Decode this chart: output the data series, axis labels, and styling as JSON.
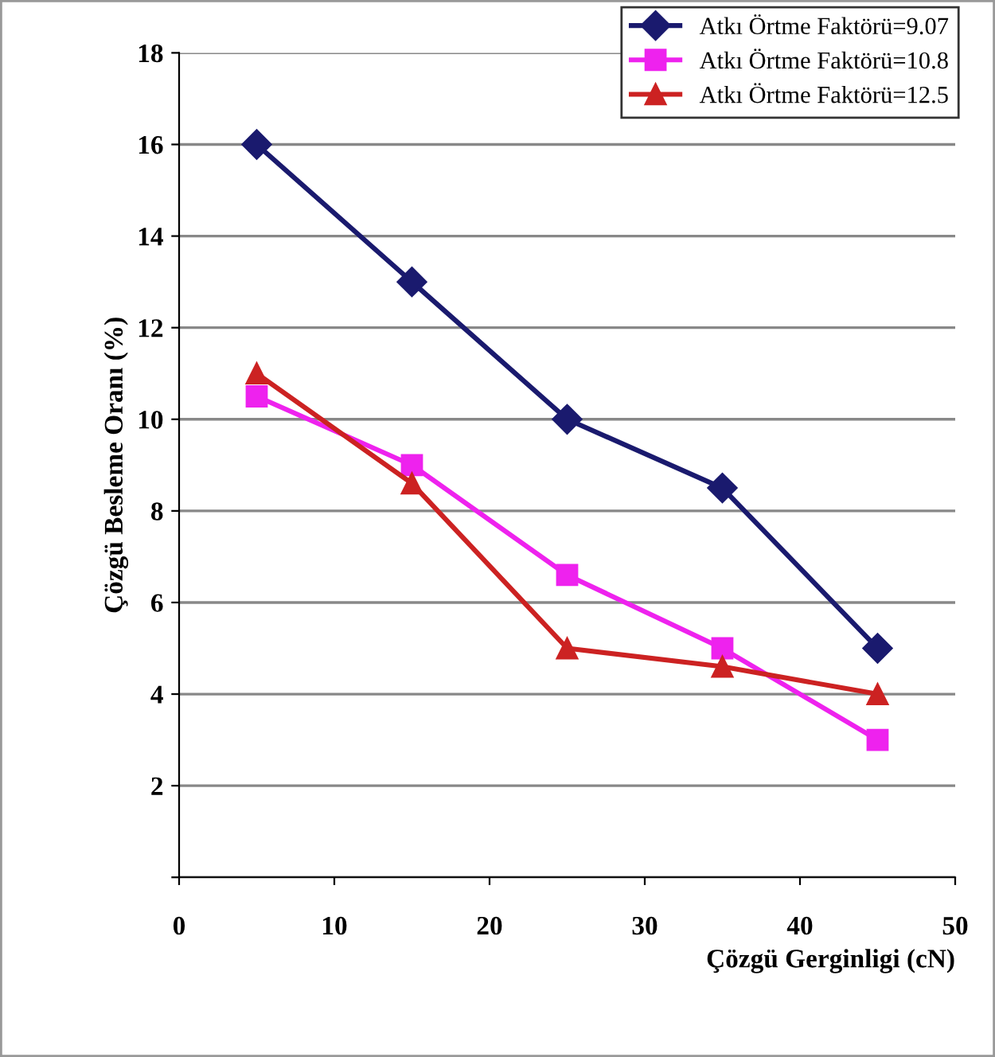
{
  "chart_data": {
    "type": "line",
    "xlabel": "Çözgü Gerginligi (cN)",
    "ylabel": "Çözgü Besleme Oranı (%)",
    "x": [
      5,
      15,
      25,
      35,
      45
    ],
    "series": [
      {
        "name": "Atkı Örtme Faktörü=9.07",
        "color": "#1a1a6e",
        "marker": "diamond",
        "values": [
          16,
          13,
          10,
          8.5,
          5
        ]
      },
      {
        "name": "Atkı Örtme Faktörü=10.8",
        "color": "#ee22ee",
        "marker": "square",
        "values": [
          10.5,
          9,
          6.6,
          5,
          3
        ]
      },
      {
        "name": "Atkı Örtme Faktörü=12.5",
        "color": "#cc2222",
        "marker": "triangle",
        "values": [
          11,
          8.6,
          5,
          4.6,
          4
        ]
      }
    ],
    "xlim": [
      0,
      50
    ],
    "xticks": [
      0,
      10,
      20,
      30,
      40,
      50
    ],
    "ylim": [
      0,
      18
    ],
    "yticks": [
      {
        "value": 0,
        "label": null
      },
      2,
      4,
      6,
      8,
      10,
      12,
      14,
      16,
      18
    ],
    "grid": "y",
    "legend": "top right",
    "line_style": "solid"
  }
}
